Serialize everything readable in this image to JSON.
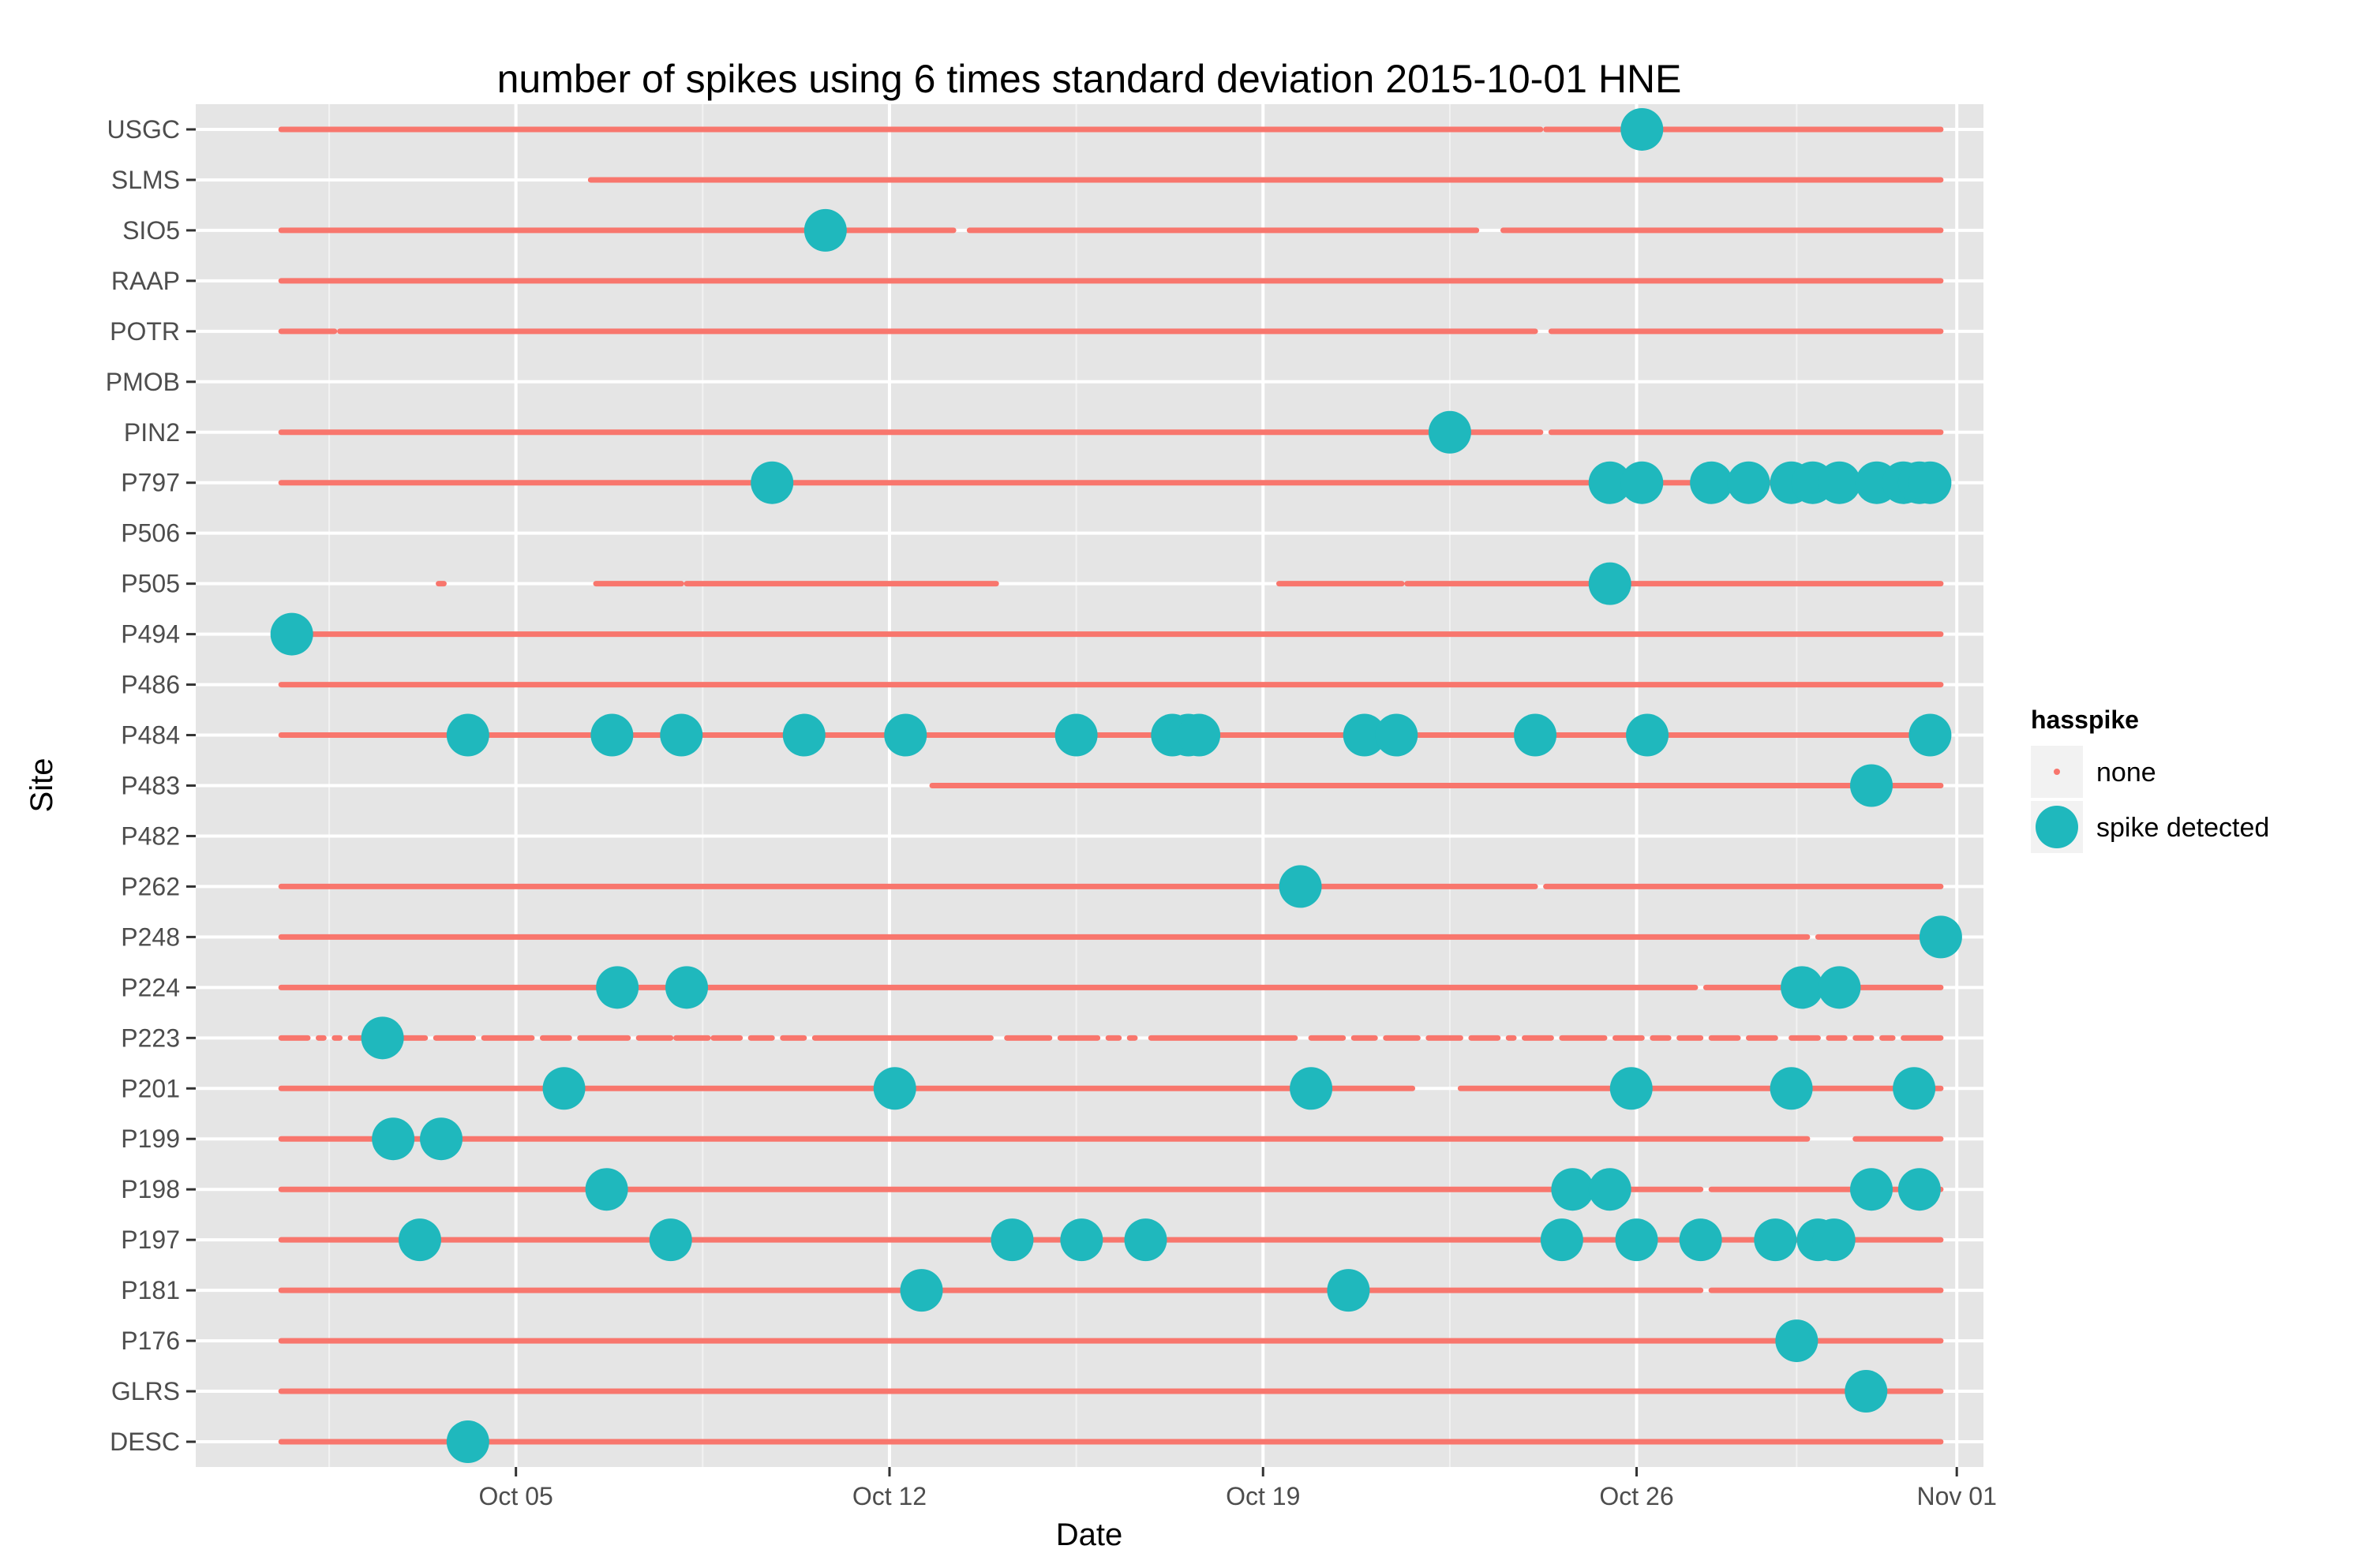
{
  "chart_data": {
    "type": "scatter",
    "title": "number of spikes using  6 times standard deviation 2015-10-01 HNE",
    "xlabel": "Date",
    "ylabel": "Site",
    "x_start": "2015-09-29",
    "x_end": "2015-11-01",
    "x_ticks": [
      {
        "label": "Oct 05",
        "day": 6
      },
      {
        "label": "Oct 12",
        "day": 13
      },
      {
        "label": "Oct 19",
        "day": 20
      },
      {
        "label": "Oct 26",
        "day": 27
      },
      {
        "label": "Nov 01",
        "day": 33
      }
    ],
    "grid": true,
    "legend": {
      "title": "hasspike",
      "position": "right",
      "entries": [
        {
          "label": "none",
          "color": "#F8766D"
        },
        {
          "label": "spike detected",
          "color": "#1FB8BD"
        }
      ]
    },
    "colors": {
      "panel": "#e5e5e5",
      "grid_major": "#ffffff",
      "grid_minor": "#f2f2f2",
      "none": "#F8766D",
      "spike": "#1FB8BD"
    },
    "sites": [
      "USGC",
      "SLMS",
      "SIO5",
      "RAAP",
      "POTR",
      "PMOB",
      "PIN2",
      "P797",
      "P506",
      "P505",
      "P494",
      "P486",
      "P484",
      "P483",
      "P482",
      "P262",
      "P248",
      "P224",
      "P223",
      "P201",
      "P199",
      "P198",
      "P197",
      "P181",
      "P176",
      "GLRS",
      "DESC"
    ],
    "series": [
      {
        "name": "none",
        "segments": {
          "USGC": [
            [
              1.6,
              25.2
            ],
            [
              25.3,
              32.7
            ]
          ],
          "SLMS": [
            [
              7.4,
              32.7
            ]
          ],
          "SIO5": [
            [
              1.6,
              14.2
            ],
            [
              14.5,
              24.0
            ],
            [
              24.5,
              32.7
            ]
          ],
          "RAAP": [
            [
              1.6,
              32.7
            ]
          ],
          "POTR": [
            [
              1.6,
              2.6
            ],
            [
              2.7,
              25.1
            ],
            [
              25.4,
              32.7
            ]
          ],
          "PMOB": [],
          "PIN2": [
            [
              1.6,
              25.2
            ],
            [
              25.4,
              32.7
            ]
          ],
          "P797": [
            [
              1.6,
              32.7
            ]
          ],
          "P506": [],
          "P505": [
            [
              4.55,
              4.65
            ],
            [
              7.5,
              9.1
            ],
            [
              9.2,
              15.0
            ],
            [
              20.3,
              22.6
            ],
            [
              22.7,
              32.7
            ]
          ],
          "P494": [
            [
              1.6,
              32.7
            ]
          ],
          "P486": [
            [
              1.6,
              32.7
            ]
          ],
          "P484": [
            [
              1.6,
              32.7
            ]
          ],
          "P483": [
            [
              13.8,
              32.7
            ]
          ],
          "P482": [],
          "P262": [
            [
              1.6,
              25.1
            ],
            [
              25.3,
              32.7
            ]
          ],
          "P248": [
            [
              1.6,
              30.2
            ],
            [
              30.4,
              32.7
            ]
          ],
          "P224": [
            [
              1.6,
              28.1
            ],
            [
              28.3,
              32.7
            ]
          ],
          "P223": [
            [
              1.6,
              2.1
            ],
            [
              2.3,
              2.4
            ],
            [
              2.6,
              2.7
            ],
            [
              2.9,
              3.4
            ],
            [
              3.6,
              4.3
            ],
            [
              4.5,
              5.2
            ],
            [
              5.4,
              6.3
            ],
            [
              6.5,
              7.0
            ],
            [
              7.2,
              8.1
            ],
            [
              8.3,
              8.9
            ],
            [
              9.0,
              9.6
            ],
            [
              9.7,
              10.2
            ],
            [
              10.4,
              10.8
            ],
            [
              11.0,
              11.4
            ],
            [
              11.6,
              14.9
            ],
            [
              15.2,
              16.0
            ],
            [
              16.2,
              16.9
            ],
            [
              17.1,
              17.3
            ],
            [
              17.5,
              17.6
            ],
            [
              17.9,
              20.6
            ],
            [
              20.9,
              21.5
            ],
            [
              21.7,
              22.1
            ],
            [
              22.3,
              22.9
            ],
            [
              23.1,
              23.7
            ],
            [
              23.9,
              24.4
            ],
            [
              24.6,
              24.7
            ],
            [
              24.9,
              25.4
            ],
            [
              25.6,
              26.4
            ],
            [
              26.6,
              27.1
            ],
            [
              27.3,
              27.6
            ],
            [
              27.8,
              28.2
            ],
            [
              28.4,
              28.9
            ],
            [
              29.1,
              29.6
            ],
            [
              29.9,
              30.4
            ],
            [
              30.6,
              30.9
            ],
            [
              31.1,
              31.4
            ],
            [
              31.6,
              31.8
            ],
            [
              32.0,
              32.7
            ]
          ],
          "P201": [
            [
              1.6,
              22.8
            ],
            [
              23.7,
              32.7
            ]
          ],
          "P199": [
            [
              1.6,
              30.2
            ],
            [
              31.1,
              32.7
            ]
          ],
          "P198": [
            [
              1.6,
              28.2
            ],
            [
              28.4,
              32.7
            ]
          ],
          "P197": [
            [
              1.6,
              32.7
            ]
          ],
          "P181": [
            [
              1.6,
              28.2
            ],
            [
              28.4,
              32.7
            ]
          ],
          "P176": [
            [
              1.6,
              30.2
            ],
            [
              30.4,
              32.7
            ]
          ],
          "GLRS": [
            [
              1.6,
              32.7
            ]
          ],
          "DESC": [
            [
              1.6,
              32.7
            ]
          ]
        }
      },
      {
        "name": "spike detected",
        "points": {
          "USGC": [
            27.1
          ],
          "SIO5": [
            11.8
          ],
          "PIN2": [
            23.5
          ],
          "P797": [
            10.8,
            26.5,
            27.1,
            28.4,
            29.1,
            29.9,
            30.3,
            30.8,
            31.5,
            32.0,
            32.3,
            32.5
          ],
          "P505": [
            26.5
          ],
          "P494": [
            1.8
          ],
          "P484": [
            5.1,
            7.8,
            9.1,
            11.4,
            13.3,
            16.5,
            18.3,
            18.6,
            18.8,
            21.9,
            22.5,
            25.1,
            27.2,
            32.5
          ],
          "P483": [
            31.4
          ],
          "P262": [
            20.7
          ],
          "P248": [
            32.7
          ],
          "P224": [
            7.9,
            9.2,
            30.1,
            30.8
          ],
          "P223": [
            3.5
          ],
          "P201": [
            6.9,
            13.1,
            20.9,
            26.9,
            29.9,
            32.2
          ],
          "P199": [
            3.7,
            4.6
          ],
          "P198": [
            7.7,
            25.8,
            26.5,
            31.4,
            32.3
          ],
          "P197": [
            4.2,
            8.9,
            15.3,
            16.6,
            17.8,
            25.6,
            27.0,
            28.2,
            29.6,
            30.4,
            30.7
          ],
          "P181": [
            13.6,
            21.6
          ],
          "P176": [
            30.0
          ],
          "GLRS": [
            31.3
          ],
          "DESC": [
            5.1
          ]
        }
      }
    ]
  }
}
